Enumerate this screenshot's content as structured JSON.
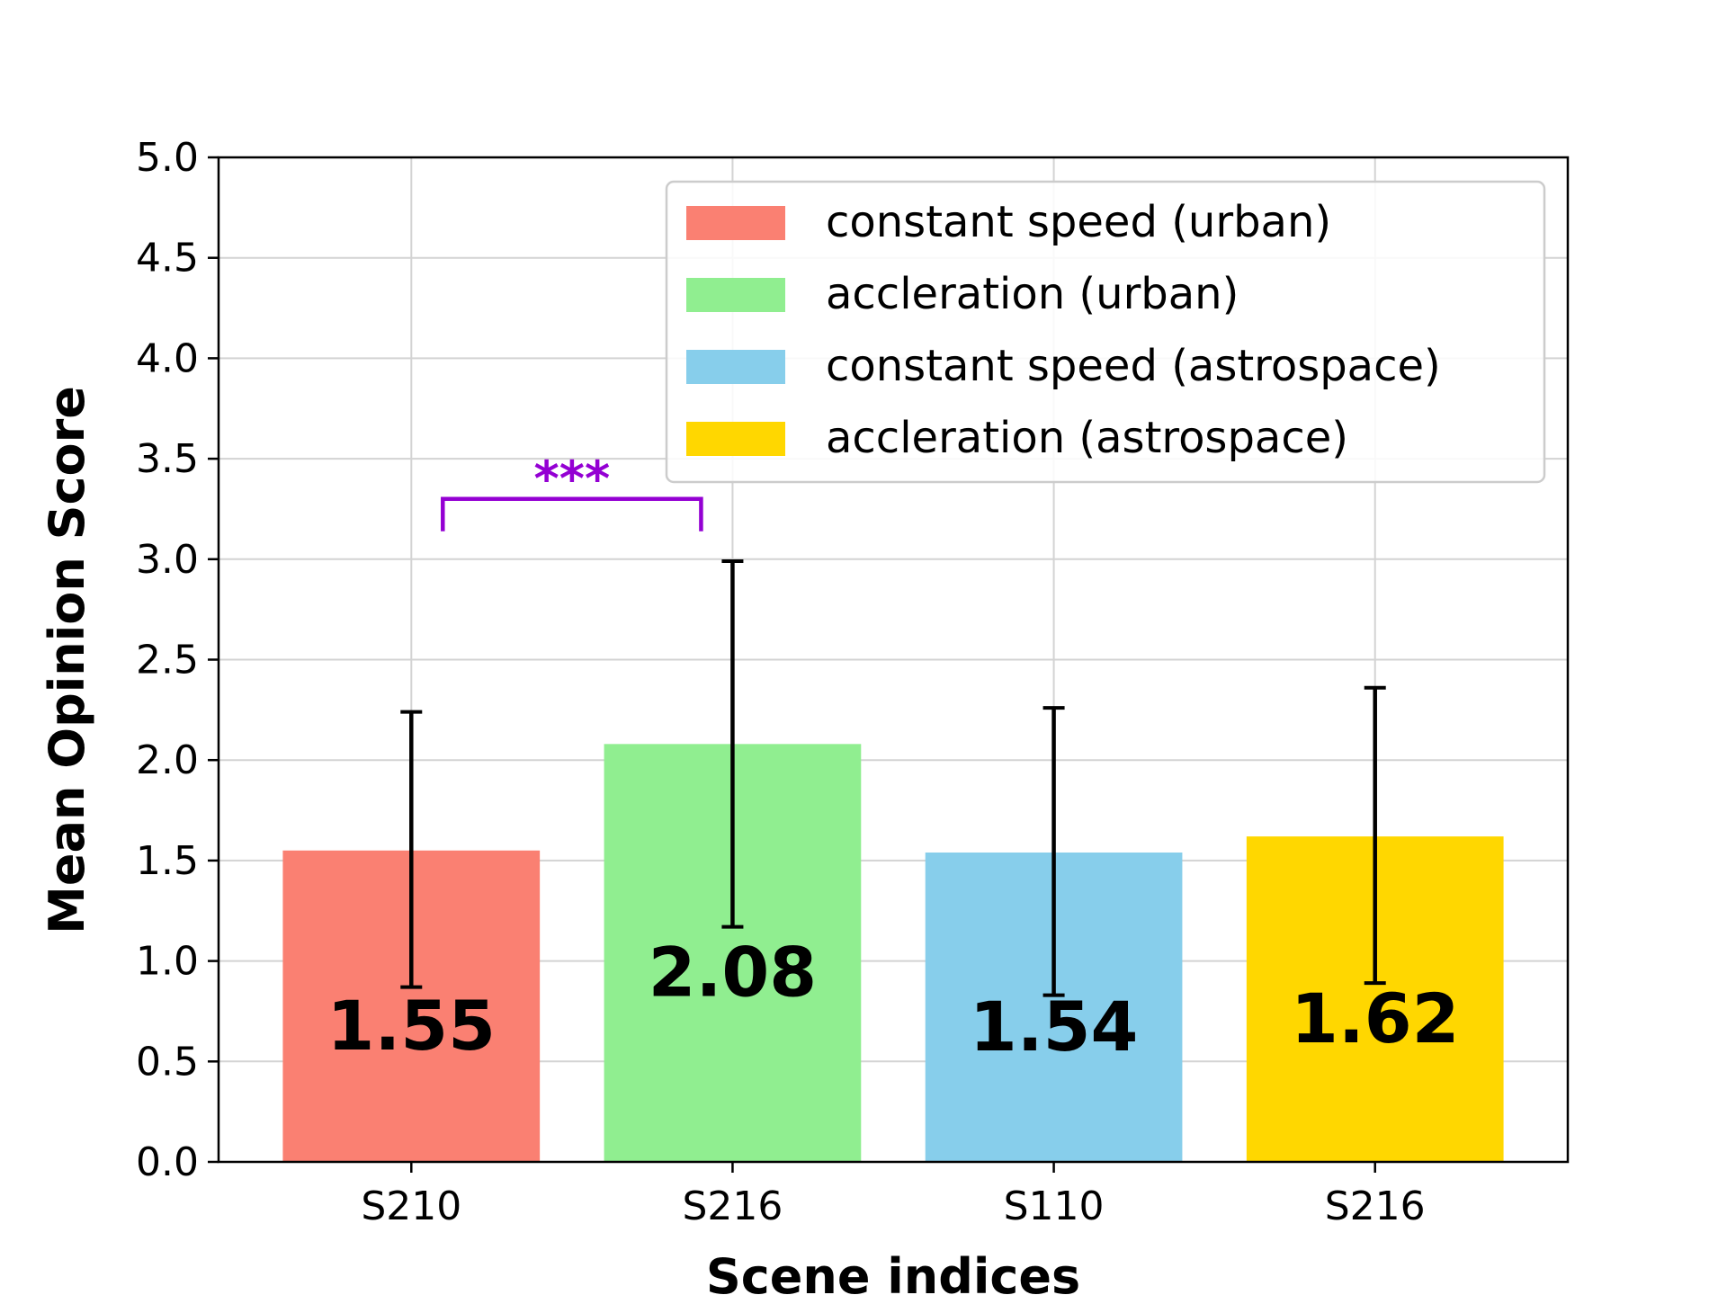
{
  "chart_data": {
    "type": "bar",
    "title": "",
    "xlabel": "Scene indices",
    "ylabel": "Mean Opinion Score",
    "ylim": [
      0,
      5
    ],
    "yticks": [
      "0.0",
      "0.5",
      "1.0",
      "1.5",
      "2.0",
      "2.5",
      "3.0",
      "3.5",
      "4.0",
      "4.5",
      "5.0"
    ],
    "grid": true,
    "legend_placement": "upper-right",
    "categories": [
      "S210",
      "S216",
      "S110",
      "S216"
    ],
    "series": [
      {
        "name": "constant speed (urban)",
        "color": "#FA8072",
        "value": 1.55,
        "label": "1.55",
        "err_low": 0.87,
        "err_high": 2.24
      },
      {
        "name": "accleration (urban)",
        "color": "#90EE90",
        "value": 2.08,
        "label": "2.08",
        "err_low": 1.17,
        "err_high": 2.99
      },
      {
        "name": "constant speed (astrospace)",
        "color": "#87CEEB",
        "value": 1.54,
        "label": "1.54",
        "err_low": 0.83,
        "err_high": 2.26
      },
      {
        "name": "accleration (astrospace)",
        "color": "#FFD700",
        "value": 1.62,
        "label": "1.62",
        "err_low": 0.89,
        "err_high": 2.36
      }
    ],
    "annotations": [
      {
        "text": "***",
        "from": 0,
        "to": 1,
        "y": 3.3,
        "color": "#9400D3"
      }
    ]
  }
}
